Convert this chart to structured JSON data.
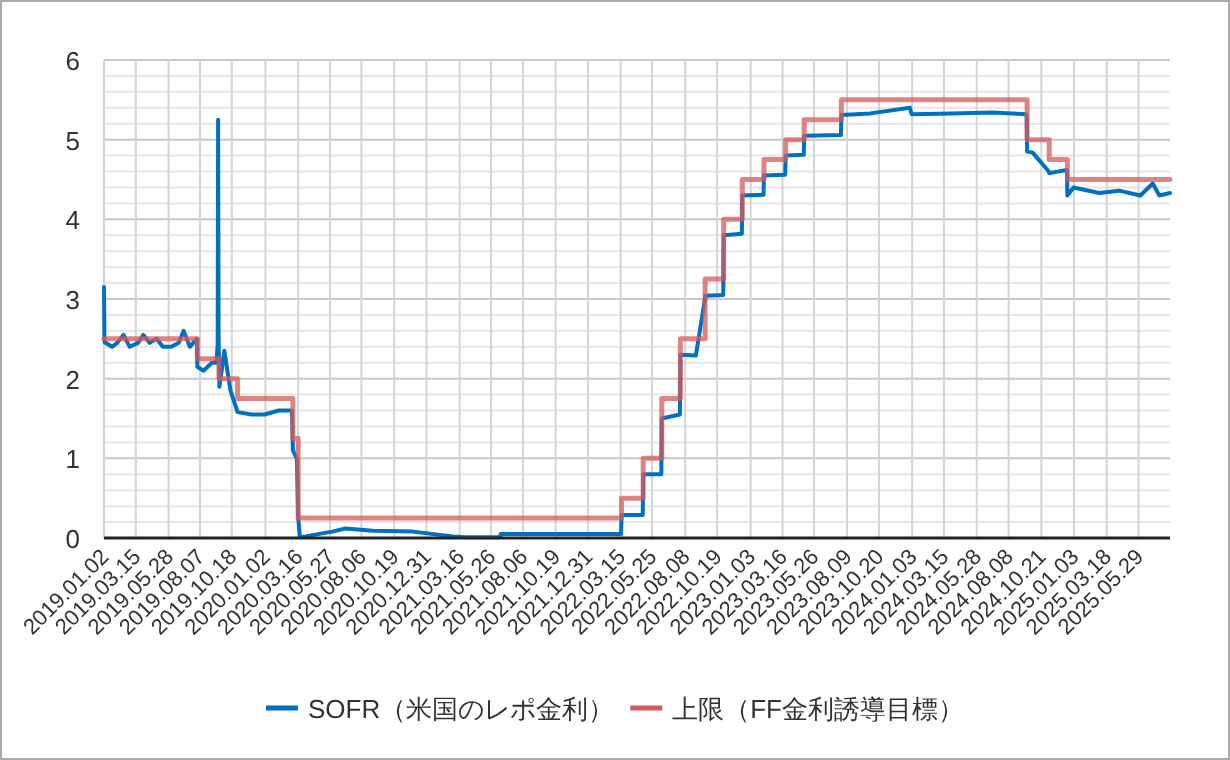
{
  "chart_data": {
    "type": "line",
    "xlim": [
      "2019-01-02",
      "2025-08-08"
    ],
    "ylim": [
      0,
      6
    ],
    "xticks": [
      {
        "value": "2019-01-02",
        "label": "2019.01.02"
      },
      {
        "value": "2019-03-15",
        "label": "2019.03.15"
      },
      {
        "value": "2019-05-28",
        "label": "2019.05.28"
      },
      {
        "value": "2019-08-07",
        "label": "2019.08.07"
      },
      {
        "value": "2019-10-18",
        "label": "2019.10.18"
      },
      {
        "value": "2020-01-02",
        "label": "2020.01.02"
      },
      {
        "value": "2020-03-16",
        "label": "2020.03.16"
      },
      {
        "value": "2020-05-27",
        "label": "2020.05.27"
      },
      {
        "value": "2020-08-06",
        "label": "2020.08.06"
      },
      {
        "value": "2020-10-19",
        "label": "2020.10.19"
      },
      {
        "value": "2020-12-31",
        "label": "2020.12.31"
      },
      {
        "value": "2021-03-16",
        "label": "2021.03.16"
      },
      {
        "value": "2021-05-26",
        "label": "2021.05.26"
      },
      {
        "value": "2021-08-06",
        "label": "2021.08.06"
      },
      {
        "value": "2021-10-19",
        "label": "2021.10.19"
      },
      {
        "value": "2021-12-31",
        "label": "2021.12.31"
      },
      {
        "value": "2022-03-15",
        "label": "2022.03.15"
      },
      {
        "value": "2022-05-25",
        "label": "2022.05.25"
      },
      {
        "value": "2022-08-08",
        "label": "2022.08.08"
      },
      {
        "value": "2022-10-19",
        "label": "2022.10.19"
      },
      {
        "value": "2023-01-03",
        "label": "2023.01.03"
      },
      {
        "value": "2023-03-16",
        "label": "2023.03.16"
      },
      {
        "value": "2023-05-26",
        "label": "2023.05.26"
      },
      {
        "value": "2023-08-09",
        "label": "2023.08.09"
      },
      {
        "value": "2023-10-20",
        "label": "2023.10.20"
      },
      {
        "value": "2024-01-03",
        "label": "2024.01.03"
      },
      {
        "value": "2024-03-15",
        "label": "2024.03.15"
      },
      {
        "value": "2024-05-28",
        "label": "2024.05.28"
      },
      {
        "value": "2024-08-08",
        "label": "2024.08.08"
      },
      {
        "value": "2024-10-21",
        "label": "2024.10.21"
      },
      {
        "value": "2025-01-03",
        "label": "2025.01.03"
      },
      {
        "value": "2025-03-18",
        "label": "2025.03.18"
      },
      {
        "value": "2025-05-29",
        "label": "2025.05.29"
      }
    ],
    "yticks": [
      0,
      {
        "value": 0.2,
        "label": null
      },
      {
        "value": 0.4,
        "label": null
      },
      {
        "value": 0.6,
        "label": null
      },
      {
        "value": 0.8,
        "label": null
      },
      1,
      {
        "value": 1.2,
        "label": null
      },
      {
        "value": 1.4,
        "label": null
      },
      {
        "value": 1.6,
        "label": null
      },
      {
        "value": 1.8,
        "label": null
      },
      2,
      {
        "value": 2.2,
        "label": null
      },
      {
        "value": 2.4,
        "label": null
      },
      {
        "value": 2.6,
        "label": null
      },
      {
        "value": 2.8,
        "label": null
      },
      3,
      {
        "value": 3.2,
        "label": null
      },
      {
        "value": 3.4,
        "label": null
      },
      {
        "value": 3.6,
        "label": null
      },
      {
        "value": 3.8,
        "label": null
      },
      4,
      {
        "value": 4.2,
        "label": null
      },
      {
        "value": 4.4,
        "label": null
      },
      {
        "value": 4.6,
        "label": null
      },
      {
        "value": 4.8,
        "label": null
      },
      5,
      {
        "value": 5.2,
        "label": null
      },
      {
        "value": 5.4,
        "label": null
      },
      {
        "value": 5.6,
        "label": null
      },
      {
        "value": 5.8,
        "label": null
      },
      6
    ],
    "grid": true,
    "legend": "bottom",
    "series": [
      {
        "name": "SOFR（米国のレポ金利）",
        "color": "#0070c0",
        "x": [
          "2019-01-02",
          "2019-01-03",
          "2019-01-20",
          "2019-02-01",
          "2019-02-15",
          "2019-03-01",
          "2019-03-20",
          "2019-04-01",
          "2019-04-15",
          "2019-05-01",
          "2019-05-15",
          "2019-06-03",
          "2019-06-20",
          "2019-07-01",
          "2019-07-15",
          "2019-07-31",
          "2019-08-01",
          "2019-08-15",
          "2019-09-03",
          "2019-09-13",
          "2019-09-16",
          "2019-09-17",
          "2019-09-18",
          "2019-09-20",
          "2019-10-01",
          "2019-10-15",
          "2019-10-31",
          "2019-12-02",
          "2019-12-31",
          "2020-02-01",
          "2020-03-02",
          "2020-03-04",
          "2020-03-13",
          "2020-03-16",
          "2020-03-20",
          "2020-04-01",
          "2020-06-01",
          "2020-07-01",
          "2020-09-01",
          "2020-12-01",
          "2021-03-01",
          "2021-04-01",
          "2021-06-16",
          "2021-06-17",
          "2021-12-31",
          "2022-03-16",
          "2022-03-17",
          "2022-05-04",
          "2022-05-05",
          "2022-06-15",
          "2022-06-16",
          "2022-07-27",
          "2022-07-28",
          "2022-09-01",
          "2022-09-21",
          "2022-09-22",
          "2022-11-02",
          "2022-11-03",
          "2022-12-14",
          "2022-12-15",
          "2023-02-01",
          "2023-02-02",
          "2023-03-22",
          "2023-03-23",
          "2023-05-03",
          "2023-05-04",
          "2023-07-26",
          "2023-07-27",
          "2023-10-01",
          "2023-12-29",
          "2024-01-02",
          "2024-04-01",
          "2024-07-01",
          "2024-09-18",
          "2024-09-19",
          "2024-10-01",
          "2024-11-07",
          "2024-11-08",
          "2024-12-18",
          "2024-12-19",
          "2025-01-02",
          "2025-03-01",
          "2025-04-15",
          "2025-06-02",
          "2025-06-30",
          "2025-07-15",
          "2025-08-08"
        ],
        "values": [
          3.15,
          2.46,
          2.4,
          2.45,
          2.55,
          2.4,
          2.45,
          2.55,
          2.45,
          2.5,
          2.4,
          2.4,
          2.45,
          2.6,
          2.4,
          2.5,
          2.15,
          2.1,
          2.2,
          2.2,
          2.43,
          5.25,
          2.55,
          1.9,
          2.35,
          1.85,
          1.58,
          1.55,
          1.55,
          1.6,
          1.6,
          1.1,
          1.0,
          0.26,
          0.01,
          0.02,
          0.08,
          0.12,
          0.09,
          0.08,
          0.02,
          0.01,
          0.01,
          0.05,
          0.05,
          0.05,
          0.29,
          0.29,
          0.8,
          0.8,
          1.5,
          1.55,
          2.3,
          2.29,
          2.98,
          3.04,
          3.05,
          3.8,
          3.82,
          4.3,
          4.31,
          4.55,
          4.56,
          4.8,
          4.81,
          5.05,
          5.06,
          5.31,
          5.33,
          5.4,
          5.32,
          5.33,
          5.34,
          5.32,
          4.85,
          4.84,
          4.6,
          4.58,
          4.62,
          4.3,
          4.4,
          4.33,
          4.36,
          4.3,
          4.45,
          4.3,
          4.33
        ]
      },
      {
        "name": "上限（FF金利誘導目標）",
        "color": "#d65a5a",
        "type": "step",
        "x": [
          "2019-01-02",
          "2019-08-01",
          "2019-09-19",
          "2019-10-31",
          "2020-03-04",
          "2020-03-16",
          "2022-03-17",
          "2022-05-05",
          "2022-06-16",
          "2022-07-28",
          "2022-09-22",
          "2022-11-03",
          "2022-12-15",
          "2023-02-02",
          "2023-03-23",
          "2023-05-04",
          "2023-07-27",
          "2024-09-19",
          "2024-11-08",
          "2024-12-19",
          "2025-08-08"
        ],
        "values": [
          2.5,
          2.25,
          2.0,
          1.75,
          1.25,
          0.25,
          0.5,
          1.0,
          1.75,
          2.5,
          3.25,
          4.0,
          4.5,
          4.75,
          5.0,
          5.25,
          5.5,
          5.0,
          4.75,
          4.5,
          4.5
        ]
      }
    ]
  }
}
